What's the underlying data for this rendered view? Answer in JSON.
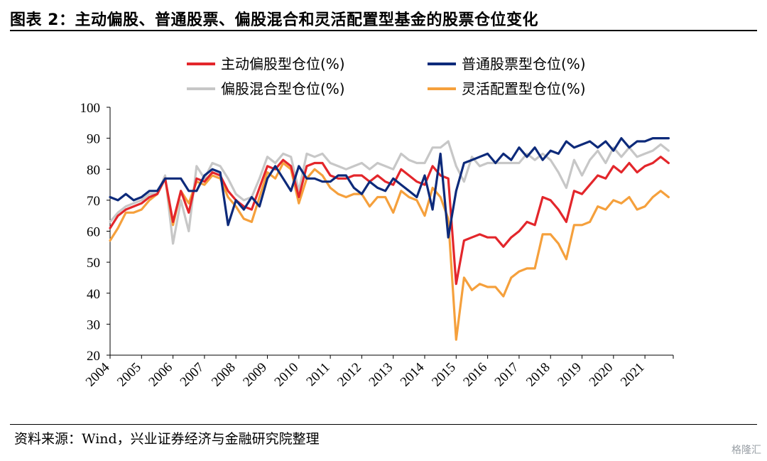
{
  "title": "图表 2：主动偏股、普通股票、偏股混合和灵活配置型基金的股票仓位变化",
  "source": "资料来源：Wind，兴业证券经济与金融研究院整理",
  "watermark": "格隆汇",
  "chart_data": {
    "type": "line",
    "ylim": [
      20,
      100
    ],
    "yticks": [
      20,
      30,
      40,
      50,
      60,
      70,
      80,
      90,
      100
    ],
    "xticks": [
      "2004",
      "2005",
      "2006",
      "2007",
      "2008",
      "2009",
      "2010",
      "2011",
      "2012",
      "2013",
      "2014",
      "2015",
      "2016",
      "2017",
      "2018",
      "2019",
      "2020",
      "2021"
    ],
    "xlim": [
      2004.0,
      2021.9
    ],
    "legend_position": "top",
    "grid": false,
    "series": [
      {
        "name": "主动偏股型仓位(%)",
        "color": "#e3262b",
        "points": [
          [
            2004.0,
            61
          ],
          [
            2004.25,
            65
          ],
          [
            2004.5,
            67
          ],
          [
            2004.75,
            68
          ],
          [
            2005.0,
            69
          ],
          [
            2005.25,
            71
          ],
          [
            2005.5,
            72
          ],
          [
            2005.75,
            77
          ],
          [
            2006.0,
            63
          ],
          [
            2006.25,
            73
          ],
          [
            2006.5,
            66
          ],
          [
            2006.75,
            77
          ],
          [
            2007.0,
            76
          ],
          [
            2007.25,
            79
          ],
          [
            2007.5,
            78
          ],
          [
            2007.75,
            73
          ],
          [
            2008.0,
            70
          ],
          [
            2008.25,
            68
          ],
          [
            2008.5,
            67
          ],
          [
            2008.75,
            74
          ],
          [
            2009.0,
            81
          ],
          [
            2009.25,
            80
          ],
          [
            2009.5,
            83
          ],
          [
            2009.75,
            81
          ],
          [
            2010.0,
            71
          ],
          [
            2010.25,
            81
          ],
          [
            2010.5,
            82
          ],
          [
            2010.75,
            82
          ],
          [
            2011.0,
            78
          ],
          [
            2011.25,
            77
          ],
          [
            2011.5,
            77
          ],
          [
            2011.75,
            78
          ],
          [
            2012.0,
            78
          ],
          [
            2012.25,
            76
          ],
          [
            2012.5,
            78
          ],
          [
            2012.75,
            76
          ],
          [
            2013.0,
            75
          ],
          [
            2013.25,
            80
          ],
          [
            2013.5,
            78
          ],
          [
            2013.75,
            76
          ],
          [
            2014.0,
            75
          ],
          [
            2014.25,
            81
          ],
          [
            2014.5,
            78
          ],
          [
            2014.75,
            77
          ],
          [
            2015.0,
            43
          ],
          [
            2015.25,
            57
          ],
          [
            2015.5,
            58
          ],
          [
            2015.75,
            59
          ],
          [
            2016.0,
            58
          ],
          [
            2016.25,
            58
          ],
          [
            2016.5,
            55
          ],
          [
            2016.75,
            58
          ],
          [
            2017.0,
            60
          ],
          [
            2017.25,
            63
          ],
          [
            2017.5,
            62
          ],
          [
            2017.75,
            71
          ],
          [
            2018.0,
            70
          ],
          [
            2018.25,
            67
          ],
          [
            2018.5,
            63
          ],
          [
            2018.75,
            73
          ],
          [
            2019.0,
            72
          ],
          [
            2019.25,
            75
          ],
          [
            2019.5,
            78
          ],
          [
            2019.75,
            77
          ],
          [
            2020.0,
            81
          ],
          [
            2020.25,
            79
          ],
          [
            2020.5,
            82
          ],
          [
            2020.75,
            79
          ],
          [
            2021.0,
            81
          ],
          [
            2021.25,
            82
          ],
          [
            2021.5,
            84
          ],
          [
            2021.75,
            82
          ]
        ]
      },
      {
        "name": "普通股票型仓位(%)",
        "color": "#0d2a7a",
        "points": [
          [
            2004.0,
            71
          ],
          [
            2004.25,
            70
          ],
          [
            2004.5,
            72
          ],
          [
            2004.75,
            70
          ],
          [
            2005.0,
            71
          ],
          [
            2005.25,
            73
          ],
          [
            2005.5,
            73
          ],
          [
            2005.75,
            77
          ],
          [
            2006.0,
            77
          ],
          [
            2006.25,
            77
          ],
          [
            2006.5,
            73
          ],
          [
            2006.75,
            73
          ],
          [
            2007.0,
            78
          ],
          [
            2007.25,
            80
          ],
          [
            2007.5,
            79
          ],
          [
            2007.75,
            62
          ],
          [
            2008.0,
            70
          ],
          [
            2008.25,
            67
          ],
          [
            2008.5,
            71
          ],
          [
            2008.75,
            68
          ],
          [
            2009.0,
            77
          ],
          [
            2009.25,
            81
          ],
          [
            2009.5,
            77
          ],
          [
            2009.75,
            73
          ],
          [
            2010.0,
            81
          ],
          [
            2010.25,
            77
          ],
          [
            2010.5,
            77
          ],
          [
            2010.75,
            76
          ],
          [
            2011.0,
            76
          ],
          [
            2011.25,
            78
          ],
          [
            2011.5,
            78
          ],
          [
            2011.75,
            74
          ],
          [
            2012.0,
            72
          ],
          [
            2012.25,
            76
          ],
          [
            2012.5,
            74
          ],
          [
            2012.75,
            73
          ],
          [
            2013.0,
            77
          ],
          [
            2013.25,
            75
          ],
          [
            2013.5,
            73
          ],
          [
            2013.75,
            71
          ],
          [
            2014.0,
            78
          ],
          [
            2014.25,
            67
          ],
          [
            2014.5,
            85
          ],
          [
            2014.75,
            58
          ],
          [
            2015.0,
            73
          ],
          [
            2015.25,
            82
          ],
          [
            2015.5,
            83
          ],
          [
            2015.75,
            84
          ],
          [
            2016.0,
            85
          ],
          [
            2016.25,
            82
          ],
          [
            2016.5,
            85
          ],
          [
            2016.75,
            83
          ],
          [
            2017.0,
            87
          ],
          [
            2017.25,
            84
          ],
          [
            2017.5,
            87
          ],
          [
            2017.75,
            83
          ],
          [
            2018.0,
            86
          ],
          [
            2018.25,
            85
          ],
          [
            2018.5,
            89
          ],
          [
            2018.75,
            87
          ],
          [
            2019.0,
            88
          ],
          [
            2019.25,
            89
          ],
          [
            2019.5,
            87
          ],
          [
            2019.75,
            89
          ],
          [
            2020.0,
            86
          ],
          [
            2020.25,
            90
          ],
          [
            2020.5,
            87
          ],
          [
            2020.75,
            89
          ],
          [
            2021.0,
            89
          ],
          [
            2021.25,
            90
          ],
          [
            2021.5,
            90
          ],
          [
            2021.75,
            90
          ]
        ]
      },
      {
        "name": "偏股混合型仓位(%)",
        "color": "#c7c7c7",
        "points": [
          [
            2004.0,
            63
          ],
          [
            2004.25,
            66
          ],
          [
            2004.5,
            68
          ],
          [
            2004.75,
            69
          ],
          [
            2005.0,
            70
          ],
          [
            2005.25,
            72
          ],
          [
            2005.5,
            72
          ],
          [
            2005.75,
            78
          ],
          [
            2006.0,
            56
          ],
          [
            2006.25,
            70
          ],
          [
            2006.5,
            60
          ],
          [
            2006.75,
            81
          ],
          [
            2007.0,
            77
          ],
          [
            2007.25,
            82
          ],
          [
            2007.5,
            81
          ],
          [
            2007.75,
            77
          ],
          [
            2008.0,
            72
          ],
          [
            2008.25,
            70
          ],
          [
            2008.5,
            71
          ],
          [
            2008.75,
            77
          ],
          [
            2009.0,
            84
          ],
          [
            2009.25,
            82
          ],
          [
            2009.5,
            85
          ],
          [
            2009.75,
            84
          ],
          [
            2010.0,
            73
          ],
          [
            2010.25,
            85
          ],
          [
            2010.5,
            84
          ],
          [
            2010.75,
            85
          ],
          [
            2011.0,
            82
          ],
          [
            2011.25,
            81
          ],
          [
            2011.5,
            80
          ],
          [
            2011.75,
            81
          ],
          [
            2012.0,
            82
          ],
          [
            2012.25,
            80
          ],
          [
            2012.5,
            82
          ],
          [
            2012.75,
            81
          ],
          [
            2013.0,
            80
          ],
          [
            2013.25,
            85
          ],
          [
            2013.5,
            83
          ],
          [
            2013.75,
            82
          ],
          [
            2014.0,
            82
          ],
          [
            2014.25,
            87
          ],
          [
            2014.5,
            87
          ],
          [
            2014.75,
            89
          ],
          [
            2015.0,
            81
          ],
          [
            2015.25,
            76
          ],
          [
            2015.5,
            84
          ],
          [
            2015.75,
            81
          ],
          [
            2016.0,
            82
          ],
          [
            2016.25,
            82
          ],
          [
            2016.5,
            82
          ],
          [
            2016.75,
            82
          ],
          [
            2017.0,
            82
          ],
          [
            2017.25,
            85
          ],
          [
            2017.5,
            83
          ],
          [
            2017.75,
            85
          ],
          [
            2018.0,
            83
          ],
          [
            2018.25,
            79
          ],
          [
            2018.5,
            74
          ],
          [
            2018.75,
            83
          ],
          [
            2019.0,
            78
          ],
          [
            2019.25,
            83
          ],
          [
            2019.5,
            86
          ],
          [
            2019.75,
            82
          ],
          [
            2020.0,
            87
          ],
          [
            2020.25,
            84
          ],
          [
            2020.5,
            87
          ],
          [
            2020.75,
            84
          ],
          [
            2021.0,
            85
          ],
          [
            2021.25,
            86
          ],
          [
            2021.5,
            88
          ],
          [
            2021.75,
            86
          ]
        ]
      },
      {
        "name": "灵活配置型仓位(%)",
        "color": "#f5a03c",
        "points": [
          [
            2004.0,
            57
          ],
          [
            2004.25,
            61
          ],
          [
            2004.5,
            66
          ],
          [
            2004.75,
            66
          ],
          [
            2005.0,
            67
          ],
          [
            2005.25,
            70
          ],
          [
            2005.5,
            72
          ],
          [
            2005.75,
            77
          ],
          [
            2006.0,
            62
          ],
          [
            2006.25,
            73
          ],
          [
            2006.5,
            69
          ],
          [
            2006.75,
            76
          ],
          [
            2007.0,
            75
          ],
          [
            2007.25,
            78
          ],
          [
            2007.5,
            77
          ],
          [
            2007.75,
            71
          ],
          [
            2008.0,
            68
          ],
          [
            2008.25,
            64
          ],
          [
            2008.5,
            63
          ],
          [
            2008.75,
            71
          ],
          [
            2009.0,
            79
          ],
          [
            2009.25,
            77
          ],
          [
            2009.5,
            82
          ],
          [
            2009.75,
            80
          ],
          [
            2010.0,
            69
          ],
          [
            2010.25,
            77
          ],
          [
            2010.5,
            80
          ],
          [
            2010.75,
            78
          ],
          [
            2011.0,
            74
          ],
          [
            2011.25,
            72
          ],
          [
            2011.5,
            71
          ],
          [
            2011.75,
            72
          ],
          [
            2012.0,
            72
          ],
          [
            2012.25,
            68
          ],
          [
            2012.5,
            71
          ],
          [
            2012.75,
            71
          ],
          [
            2013.0,
            66
          ],
          [
            2013.25,
            73
          ],
          [
            2013.5,
            71
          ],
          [
            2013.75,
            70
          ],
          [
            2014.0,
            65
          ],
          [
            2014.25,
            74
          ],
          [
            2014.5,
            71
          ],
          [
            2014.75,
            64
          ],
          [
            2015.0,
            25
          ],
          [
            2015.25,
            45
          ],
          [
            2015.5,
            41
          ],
          [
            2015.75,
            43
          ],
          [
            2016.0,
            42
          ],
          [
            2016.25,
            42
          ],
          [
            2016.5,
            39
          ],
          [
            2016.75,
            45
          ],
          [
            2017.0,
            47
          ],
          [
            2017.25,
            48
          ],
          [
            2017.5,
            48
          ],
          [
            2017.75,
            59
          ],
          [
            2018.0,
            59
          ],
          [
            2018.25,
            56
          ],
          [
            2018.5,
            51
          ],
          [
            2018.75,
            62
          ],
          [
            2019.0,
            62
          ],
          [
            2019.25,
            63
          ],
          [
            2019.5,
            68
          ],
          [
            2019.75,
            67
          ],
          [
            2020.0,
            70
          ],
          [
            2020.25,
            69
          ],
          [
            2020.5,
            71
          ],
          [
            2020.75,
            67
          ],
          [
            2021.0,
            68
          ],
          [
            2021.25,
            71
          ],
          [
            2021.5,
            73
          ],
          [
            2021.75,
            71
          ]
        ]
      }
    ]
  }
}
